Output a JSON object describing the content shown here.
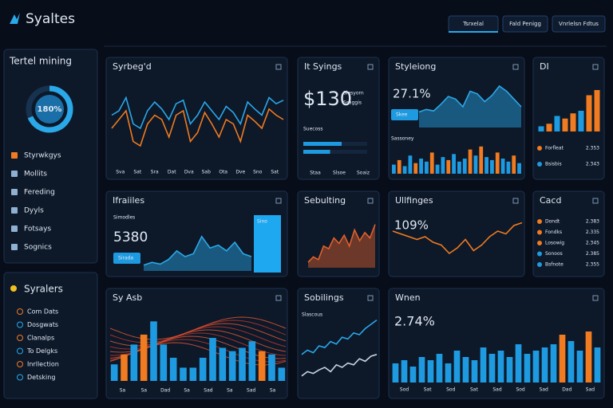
{
  "header": {
    "title": "Syaltes",
    "buttons": [
      "Tsrxelal",
      "Fald Penigg",
      "Vnrlelsn Fdtus"
    ]
  },
  "sidebar": {
    "title": "Tertel mining",
    "gauge": "180%",
    "menu": [
      "Styrwkgys",
      "Mollits",
      "Fereding",
      "Dyyls",
      "Fotsays",
      "Sognics"
    ]
  },
  "sidebar2": {
    "title": "Syralers",
    "menu": [
      "Com Dats",
      "Dosgwats",
      "Clanalps",
      "To Delgks",
      "Inrllection",
      "Detsking"
    ]
  },
  "panels": [
    {
      "title": "Syrbeg'd",
      "xlabels": [
        "Sva",
        "Sat",
        "Sra",
        "Dat",
        "Dva",
        "Sab",
        "Ota",
        "Dve",
        "Sno",
        "Sat"
      ],
      "charts": [
        {
          "type": "line",
          "ylim": [
            0,
            100
          ],
          "series": [
            {
              "color": "#2aa8e8",
              "values": [
                55,
                60,
                75,
                45,
                40,
                60,
                70,
                62,
                50,
                68,
                72,
                45,
                55,
                70,
                60,
                50,
                65,
                58,
                45,
                70,
                62,
                55,
                75,
                68,
                72
              ]
            },
            {
              "color": "#f07b20",
              "values": [
                40,
                50,
                60,
                25,
                20,
                45,
                55,
                50,
                30,
                55,
                60,
                25,
                35,
                58,
                45,
                30,
                50,
                45,
                25,
                55,
                48,
                40,
                62,
                55,
                50
              ]
            }
          ]
        }
      ]
    },
    {
      "title": "It Syings",
      "kpi": "$130",
      "texts": [
        "Slesyorn",
        "Ssaggis",
        "Suecoss"
      ],
      "xlabels": [
        "Staa",
        "Slsoe",
        "Soaiz"
      ],
      "charts": [
        {
          "type": "hbar",
          "ylim": [
            0,
            100
          ],
          "series": [
            {
              "color": "#1e9be0",
              "values": [
                60,
                42
              ]
            }
          ]
        }
      ]
    },
    {
      "title": "Styleiong",
      "kpi": "27.1%",
      "button": "Skee",
      "texts": [
        "Sassoney"
      ],
      "charts": [
        {
          "type": "area",
          "ylim": [
            0,
            100
          ],
          "series": [
            {
              "color": "#2aa8e8",
              "values": [
                30,
                35,
                32,
                45,
                60,
                55,
                40,
                70,
                65,
                50,
                62,
                80,
                70,
                55,
                40
              ]
            }
          ]
        },
        {
          "type": "bar",
          "ylim": [
            0,
            100
          ],
          "series": [
            {
              "colors": [
                "#1e9be0",
                "#f07b20",
                "#1e9be0",
                "#1e9be0",
                "#f07b20",
                "#1e9be0",
                "#1e9be0",
                "#f07b20",
                "#1e9be0",
                "#1e9be0",
                "#f07b20",
                "#1e9be0",
                "#1e9be0",
                "#1e9be0",
                "#f07b20",
                "#1e9be0",
                "#f07b20",
                "#1e9be0",
                "#1e9be0",
                "#f07b20",
                "#1e9be0",
                "#1e9be0",
                "#f07b20",
                "#1e9be0"
              ],
              "values": [
                30,
                45,
                25,
                60,
                35,
                50,
                40,
                70,
                30,
                55,
                45,
                65,
                40,
                50,
                80,
                60,
                90,
                55,
                45,
                70,
                50,
                40,
                60,
                35
              ]
            }
          ]
        }
      ]
    },
    {
      "title": "DI",
      "legend": [
        {
          "label": "Forfleat",
          "value": "2.353",
          "color": "#f07b20"
        },
        {
          "label": "Bsisbis",
          "value": "2.343",
          "color": "#1e9be0"
        }
      ],
      "charts": [
        {
          "type": "bar",
          "ylim": [
            0,
            100
          ],
          "series": [
            {
              "colors": [
                "#1e9be0",
                "#f07b20",
                "#1e9be0",
                "#f07b20",
                "#f07b20",
                "#1e9be0",
                "#f07b20",
                "#f07b20"
              ],
              "values": [
                10,
                15,
                30,
                25,
                35,
                40,
                70,
                80
              ]
            }
          ]
        }
      ]
    },
    {
      "title": "Ifraiiles",
      "kpi": "5380",
      "texts": [
        "Simodles"
      ],
      "button": "Sirada",
      "highlight": "Sino",
      "charts": [
        {
          "type": "area",
          "ylim": [
            0,
            100
          ],
          "series": [
            {
              "color": "#2aa8e8",
              "values": [
                10,
                15,
                12,
                20,
                35,
                25,
                30,
                60,
                40,
                45,
                35,
                50,
                30,
                25
              ]
            }
          ]
        }
      ]
    },
    {
      "title": "Sebulting",
      "charts": [
        {
          "type": "area",
          "ylim": [
            0,
            100
          ],
          "series": [
            {
              "color": "#e0602a",
              "values": [
                10,
                20,
                15,
                40,
                35,
                55,
                45,
                60,
                40,
                70,
                50,
                65,
                55,
                80
              ]
            }
          ]
        }
      ]
    },
    {
      "title": "Ullfinges",
      "kpi": "109%",
      "charts": [
        {
          "type": "line",
          "ylim": [
            0,
            100
          ],
          "series": [
            {
              "color": "#f07b20",
              "values": [
                60,
                55,
                50,
                45,
                50,
                40,
                35,
                20,
                30,
                45,
                25,
                35,
                50,
                60,
                55,
                70,
                75
              ]
            }
          ]
        }
      ]
    },
    {
      "title": "Cacd",
      "legend": [
        {
          "label": "Dondt",
          "value": "2.383",
          "color": "#f07b20"
        },
        {
          "label": "Fondks",
          "value": "2.335",
          "color": "#f07b20"
        },
        {
          "label": "Losowig",
          "value": "2.345",
          "color": "#f07b20"
        },
        {
          "label": "Sonoos",
          "value": "2.385",
          "color": "#1e9be0"
        },
        {
          "label": "Bsfnote",
          "value": "2.355",
          "color": "#1e9be0"
        }
      ]
    },
    {
      "title": "Sy Asb",
      "xlabels": [
        "Sa",
        "Sa",
        "Dad",
        "Sa",
        "Sad",
        "Sa",
        "Sad",
        "Sa"
      ],
      "charts": [
        {
          "type": "bar",
          "ylim": [
            0,
            100
          ],
          "series": [
            {
              "colors": [
                "#1e9be0",
                "#f07b20",
                "#1e9be0",
                "#f07b20",
                "#1e9be0",
                "#1e9be0",
                "#1e9be0",
                "#1e9be0",
                "#1e9be0",
                "#1e9be0",
                "#1e9be0",
                "#1e9be0",
                "#1e9be0",
                "#1e9be0",
                "#1e9be0",
                "#f07b20",
                "#1e9be0",
                "#1e9be0"
              ],
              "values": [
                25,
                40,
                55,
                70,
                90,
                55,
                35,
                20,
                20,
                35,
                65,
                50,
                45,
                50,
                60,
                45,
                40,
                20
              ]
            }
          ]
        }
      ]
    },
    {
      "title": "Sobilings",
      "texts": [
        "Slascous"
      ],
      "charts": [
        {
          "type": "line",
          "ylim": [
            0,
            100
          ],
          "series": [
            {
              "color": "#2aa8e8",
              "values": [
                40,
                45,
                42,
                50,
                48,
                55,
                52,
                60,
                58,
                65,
                63,
                70,
                75,
                80
              ]
            },
            {
              "color": "#c8d4e0",
              "values": [
                15,
                20,
                18,
                22,
                25,
                20,
                28,
                25,
                30,
                28,
                35,
                32,
                38,
                40
              ]
            }
          ]
        }
      ]
    },
    {
      "title": "Wnen",
      "kpi": "2.74%",
      "xlabels": [
        "Sod",
        "Sat",
        "Sod",
        "Sat",
        "Sad",
        "Sod",
        "Sad",
        "Dad",
        "Sad"
      ],
      "charts": [
        {
          "type": "bar",
          "ylim": [
            0,
            100
          ],
          "series": [
            {
              "colors": [
                "#1e9be0",
                "#1e9be0",
                "#1e9be0",
                "#1e9be0",
                "#1e9be0",
                "#1e9be0",
                "#1e9be0",
                "#1e9be0",
                "#1e9be0",
                "#1e9be0",
                "#1e9be0",
                "#1e9be0",
                "#1e9be0",
                "#1e9be0",
                "#1e9be0",
                "#1e9be0",
                "#1e9be0",
                "#1e9be0",
                "#1e9be0",
                "#f07b20",
                "#1e9be0",
                "#1e9be0",
                "#f07b20",
                "#1e9be0"
              ],
              "values": [
                30,
                35,
                25,
                40,
                35,
                45,
                30,
                50,
                40,
                35,
                55,
                45,
                50,
                40,
                60,
                45,
                50,
                55,
                60,
                75,
                65,
                50,
                80,
                55
              ]
            }
          ]
        }
      ]
    }
  ]
}
